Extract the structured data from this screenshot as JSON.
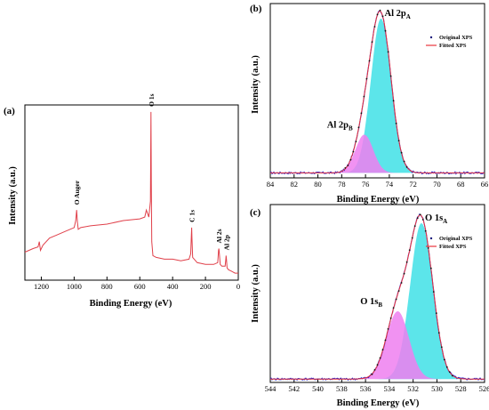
{
  "chart_data": [
    {
      "panel": "(a)",
      "type": "line",
      "xlabel": "Binding Energy (eV)",
      "ylabel": "Intensity (a.u.)",
      "xlim": [
        1300,
        0
      ],
      "ylim": [
        0,
        1
      ],
      "x_reversed": true,
      "xticks": [
        "1200",
        "1000",
        "800",
        "600",
        "400",
        "200",
        "0"
      ],
      "line_color": "#e0404a",
      "series": [
        {
          "x": [
            1300,
            1250,
            1220,
            1212,
            1205,
            1190,
            1150,
            1100,
            1050,
            1000,
            990,
            985,
            980,
            975,
            960,
            900,
            800,
            700,
            600,
            570,
            560,
            545,
            535,
            532,
            530,
            527,
            520,
            500,
            450,
            400,
            350,
            300,
            290,
            286,
            284,
            282,
            278,
            250,
            200,
            150,
            125,
            120,
            118,
            116,
            110,
            100,
            80,
            76,
            74,
            72,
            68,
            60,
            40,
            20,
            0
          ],
          "y": [
            0.16,
            0.18,
            0.19,
            0.22,
            0.17,
            0.2,
            0.24,
            0.26,
            0.28,
            0.3,
            0.34,
            0.4,
            0.33,
            0.29,
            0.3,
            0.31,
            0.32,
            0.34,
            0.35,
            0.36,
            0.4,
            0.36,
            0.45,
            0.96,
            0.55,
            0.22,
            0.14,
            0.13,
            0.12,
            0.12,
            0.11,
            0.12,
            0.15,
            0.25,
            0.3,
            0.24,
            0.13,
            0.1,
            0.09,
            0.09,
            0.1,
            0.17,
            0.18,
            0.16,
            0.09,
            0.08,
            0.08,
            0.12,
            0.14,
            0.12,
            0.07,
            0.06,
            0.05,
            0.04,
            0.04
          ]
        }
      ],
      "annotations": [
        {
          "text": "O Auger",
          "x": 985
        },
        {
          "text": "O 1s",
          "x": 531
        },
        {
          "text": "C 1s",
          "x": 284
        },
        {
          "text": "Al 2s",
          "x": 118
        },
        {
          "text": "Al 2p",
          "x": 74
        }
      ]
    },
    {
      "panel": "(b)",
      "type": "line",
      "xlabel": "Binding Energy (eV)",
      "ylabel": "Intensity (a.u.)",
      "xlim": [
        84,
        66
      ],
      "ylim": [
        0,
        1.05
      ],
      "x_reversed": true,
      "xticks": [
        "84",
        "82",
        "80",
        "78",
        "76",
        "74",
        "72",
        "70",
        "68",
        "66"
      ],
      "baseline": 0.03,
      "peaks": [
        {
          "name": "Al 2pA",
          "label_main": "Al 2p",
          "label_sub": "A",
          "center": 74.7,
          "height": 0.93,
          "sigma": 0.85,
          "fill": "#3fe0e6"
        },
        {
          "name": "Al 2pB",
          "label_main": "Al 2p",
          "label_sub": "B",
          "center": 76.1,
          "height": 0.23,
          "sigma": 0.75,
          "fill": "#ef7ff0"
        }
      ],
      "legend": [
        {
          "label": "Original XPS",
          "style": "dots",
          "color": "#1a1a7a"
        },
        {
          "label": "Fitted XPS",
          "style": "line",
          "color": "#e8343c"
        }
      ],
      "data_line_color": "#2a2ad0"
    },
    {
      "panel": "(c)",
      "type": "line",
      "xlabel": "Binding Energy (eV)",
      "ylabel": "Intensity (a.u.)",
      "xlim": [
        544,
        526
      ],
      "ylim": [
        0,
        1.05
      ],
      "x_reversed": true,
      "xticks": [
        "544",
        "542",
        "540",
        "538",
        "536",
        "534",
        "532",
        "530",
        "528",
        "526"
      ],
      "baseline": 0.02,
      "peaks": [
        {
          "name": "O 1sA",
          "label_main": "O 1s",
          "label_sub": "A",
          "center": 531.3,
          "height": 0.92,
          "sigma": 0.95,
          "fill": "#3fe0e6"
        },
        {
          "name": "O 1sB",
          "label_main": "O 1s",
          "label_sub": "B",
          "center": 533.3,
          "height": 0.4,
          "sigma": 0.95,
          "fill": "#ef7ff0"
        }
      ],
      "legend": [
        {
          "label": "Original XPS",
          "style": "dots",
          "color": "#1a1a7a"
        },
        {
          "label": "Fitted XPS",
          "style": "line",
          "color": "#e8343c"
        }
      ],
      "data_line_color": "#2a2ad0"
    }
  ]
}
